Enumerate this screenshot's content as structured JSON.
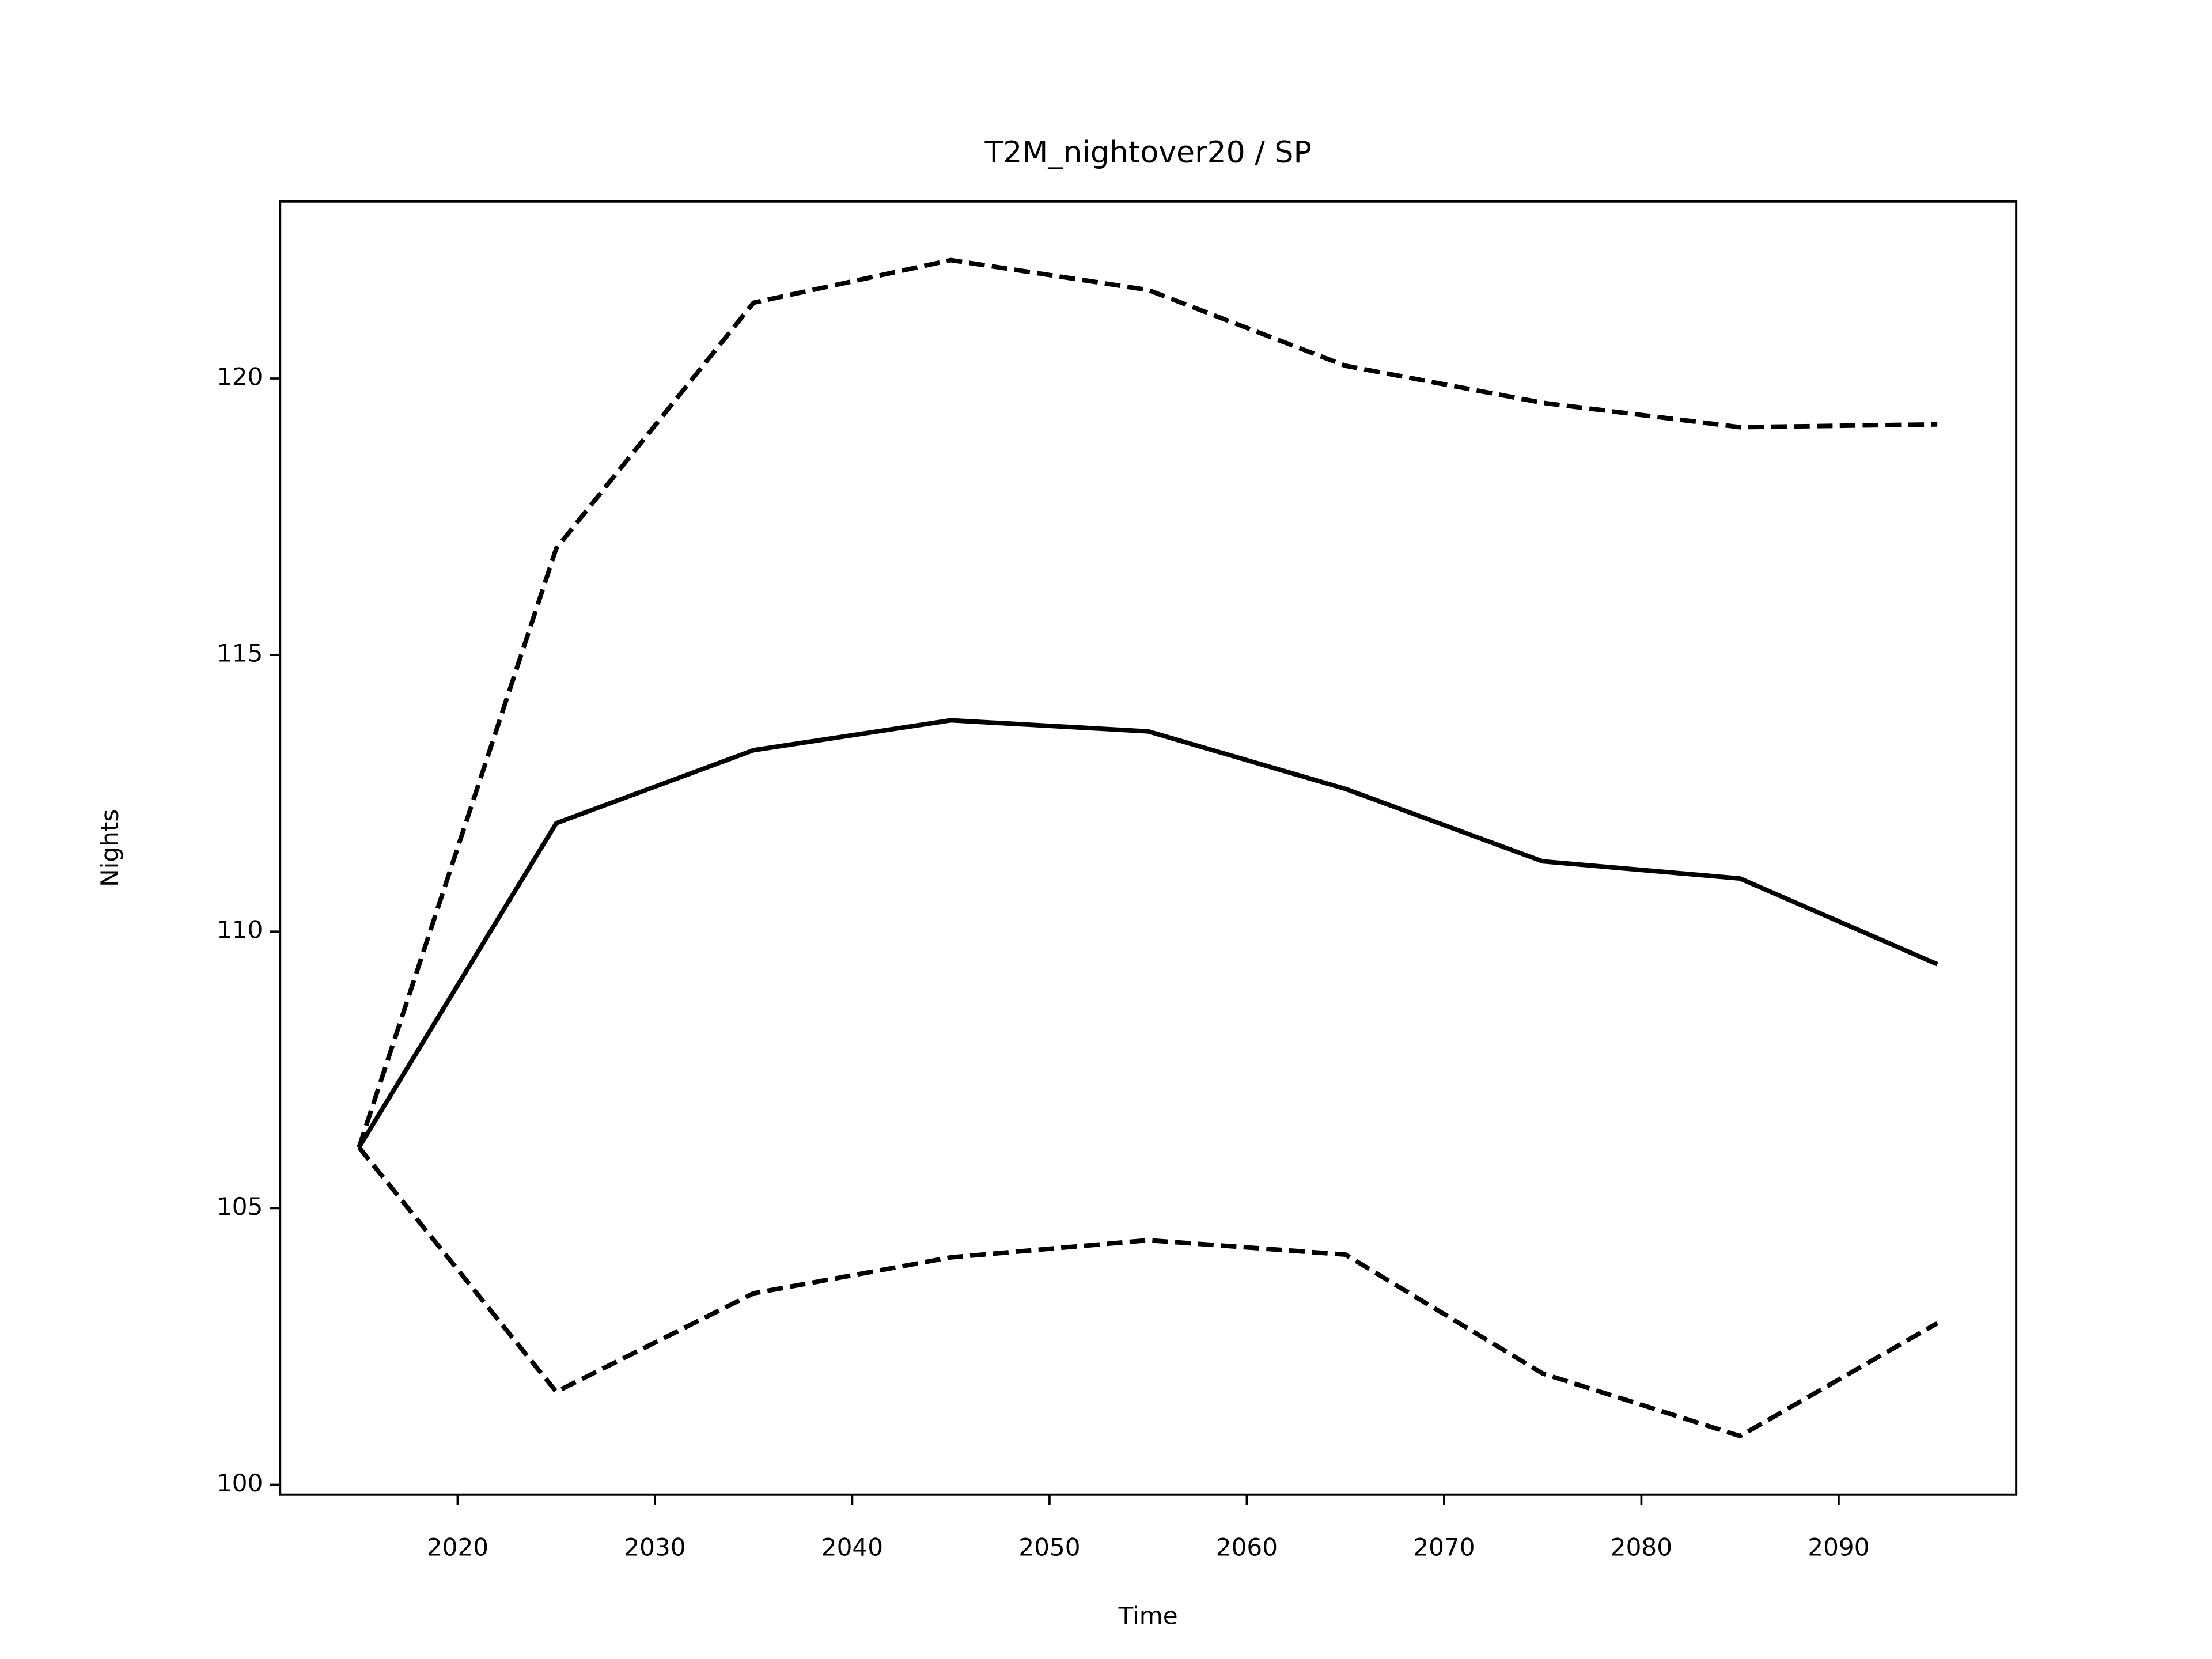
{
  "chart_data": {
    "type": "line",
    "title": "T2M_nightover20 / SP",
    "xlabel": "Time",
    "ylabel": "Nights",
    "x": [
      2015,
      2025,
      2035,
      2045,
      2055,
      2065,
      2075,
      2085,
      2095
    ],
    "series": [
      {
        "color": "#000000",
        "linestyle": "solid",
        "values": [
          106.1,
          111.96,
          113.28,
          113.82,
          113.62,
          112.58,
          111.27,
          110.96,
          109.41
        ]
      },
      {
        "color": "#000000",
        "linestyle": "dashed",
        "values": [
          106.1,
          116.93,
          121.37,
          122.14,
          121.6,
          120.23,
          119.56,
          119.12,
          119.17
        ]
      },
      {
        "color": "#000000",
        "linestyle": "dashed",
        "values": [
          106.1,
          101.68,
          103.46,
          104.11,
          104.42,
          104.16,
          102.01,
          100.88,
          102.92
        ]
      }
    ],
    "xlim": [
      2011,
      2099
    ],
    "ylim": [
      99.82,
      123.2
    ],
    "xticks": [
      2020,
      2030,
      2040,
      2050,
      2060,
      2070,
      2080,
      2090
    ],
    "yticks": [
      100,
      105,
      110,
      115,
      120
    ],
    "grid": false
  }
}
